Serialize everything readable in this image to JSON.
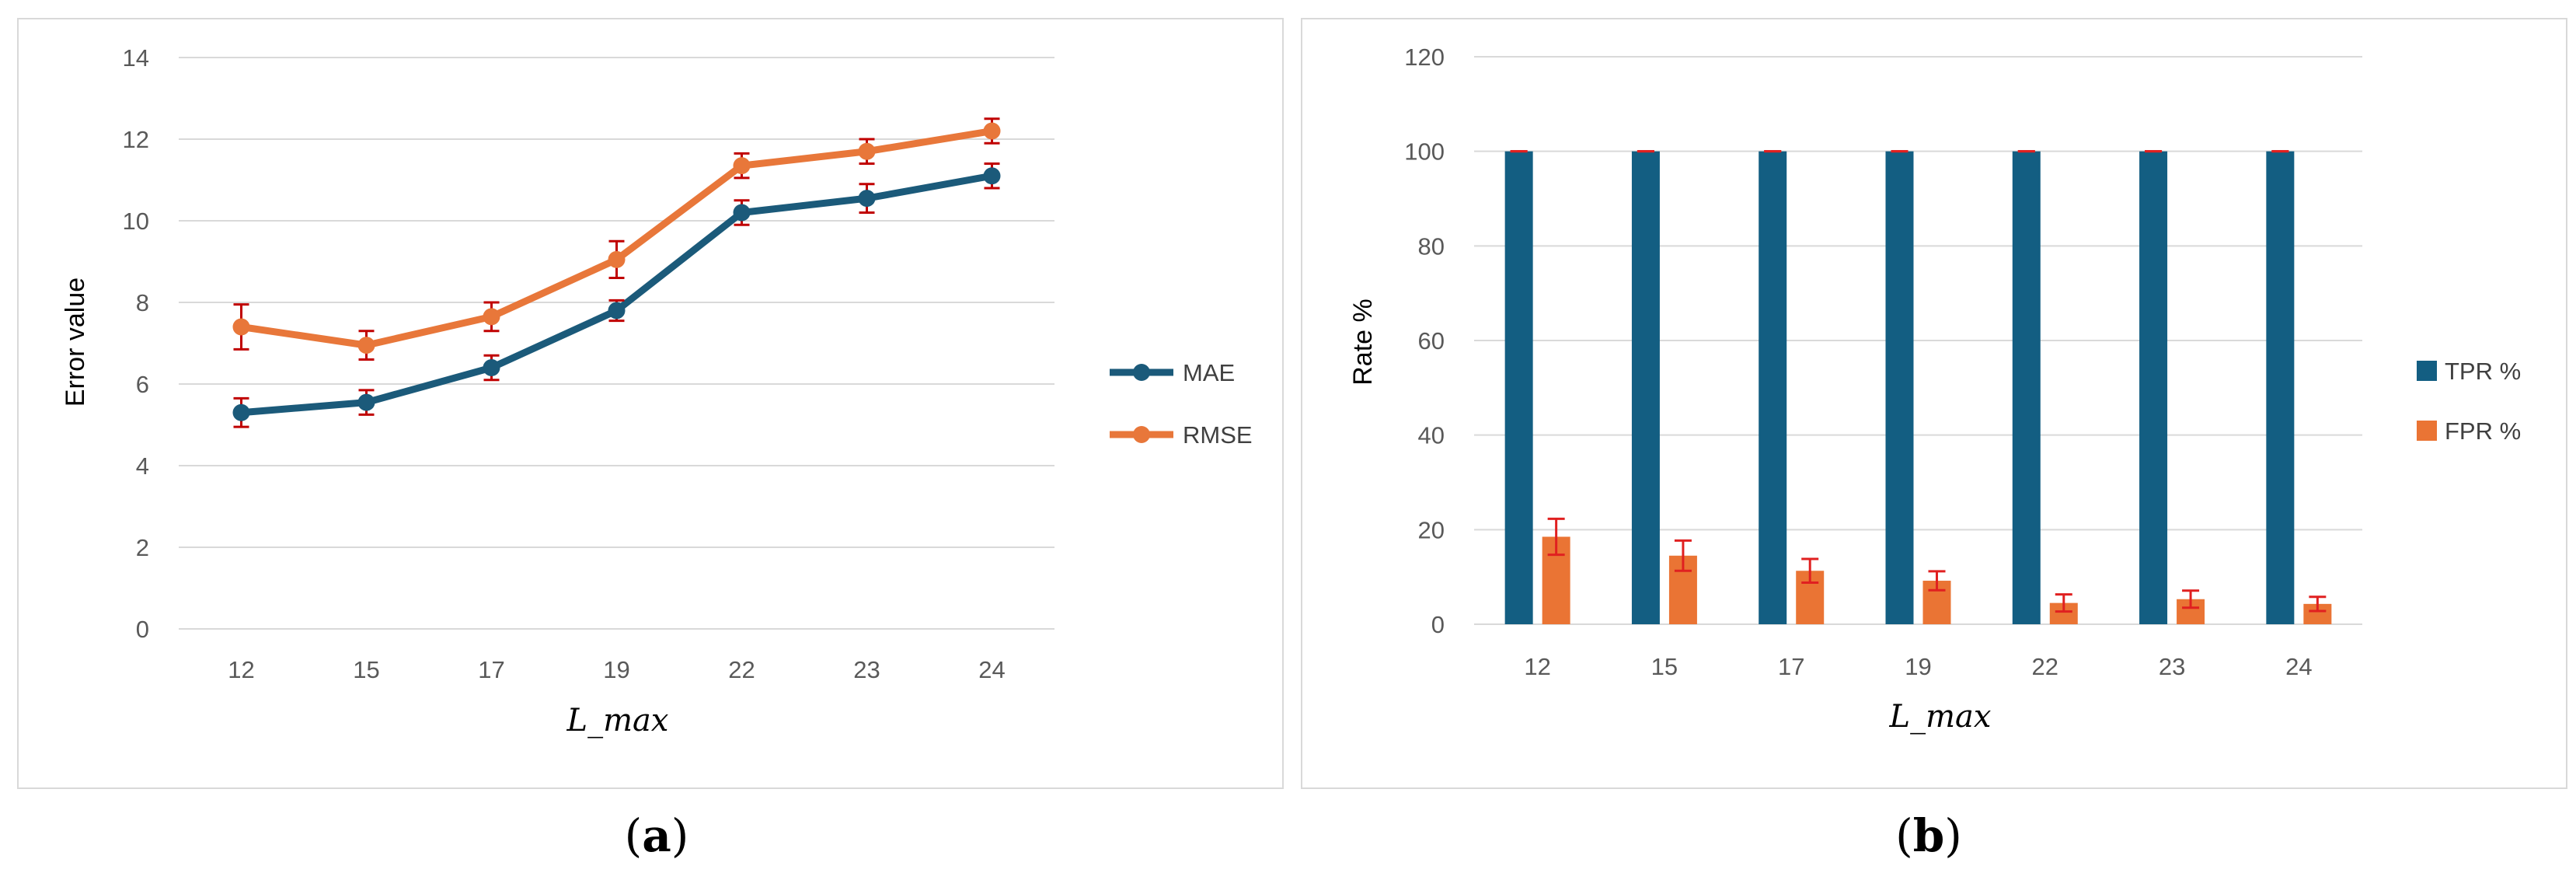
{
  "chart_data": [
    {
      "type": "line",
      "panel_label": "a",
      "categories": [
        "12",
        "15",
        "17",
        "19",
        "22",
        "23",
        "24"
      ],
      "xlabel": "L_max",
      "ylabel": "Error value",
      "ylim": [
        0,
        14
      ],
      "yticks": [
        "0",
        "2",
        "4",
        "6",
        "8",
        "10",
        "12",
        "14"
      ],
      "grid": true,
      "legend_position": "right",
      "series": [
        {
          "name": "MAE",
          "color": "#1b5a7a",
          "values": [
            5.3,
            5.55,
            6.4,
            7.8,
            10.2,
            10.55,
            11.1
          ],
          "errors": [
            0.35,
            0.3,
            0.3,
            0.25,
            0.3,
            0.35,
            0.3
          ]
        },
        {
          "name": "RMSE",
          "color": "#e8773a",
          "values": [
            7.4,
            6.95,
            7.65,
            9.05,
            11.35,
            11.7,
            12.2
          ],
          "errors": [
            0.55,
            0.35,
            0.35,
            0.45,
            0.3,
            0.3,
            0.3
          ]
        }
      ],
      "error_bar_color": "#c00000"
    },
    {
      "type": "bar",
      "panel_label": "b",
      "categories": [
        "12",
        "15",
        "17",
        "19",
        "22",
        "23",
        "24"
      ],
      "xlabel": "L_max",
      "ylabel": "Rate %",
      "ylim": [
        0,
        120
      ],
      "yticks": [
        "0",
        "20",
        "40",
        "60",
        "80",
        "100",
        "120"
      ],
      "grid": true,
      "legend_position": "right",
      "series": [
        {
          "name": "TPR %",
          "color": "#135e82",
          "values": [
            100,
            100,
            100,
            100,
            100,
            100,
            100
          ],
          "errors": [
            0,
            0,
            0,
            0,
            0,
            0,
            0
          ]
        },
        {
          "name": "FPR %",
          "color": "#ea7434",
          "values": [
            18.5,
            14.5,
            11.3,
            9.2,
            4.5,
            5.3,
            4.3
          ],
          "errors": [
            3.8,
            3.2,
            2.5,
            2.0,
            1.8,
            1.8,
            1.5
          ]
        }
      ],
      "error_bar_color": "#e02020"
    }
  ]
}
